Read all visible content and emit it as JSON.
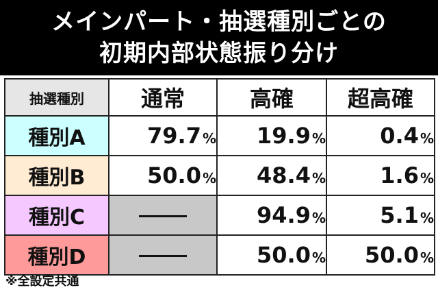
{
  "title": {
    "line1": "メインパート・抽選種別ごとの",
    "line2": "初期内部状態振り分け"
  },
  "table": {
    "corner": "抽選種別",
    "columns": [
      "通常",
      "高確",
      "超高確"
    ],
    "rows": [
      {
        "label": "種別A",
        "color": "#ccffff",
        "values": [
          "79.7",
          "19.9",
          "0.4"
        ]
      },
      {
        "label": "種別B",
        "color": "#ffecd2",
        "values": [
          "50.0",
          "48.4",
          "1.6"
        ]
      },
      {
        "label": "種別C",
        "color": "#f5c8ff",
        "values": [
          null,
          "94.9",
          "5.1"
        ]
      },
      {
        "label": "種別D",
        "color": "#ff9a9a",
        "values": [
          null,
          "50.0",
          "50.0"
        ]
      }
    ],
    "unit": "%"
  },
  "footnote": "※全設定共通"
}
